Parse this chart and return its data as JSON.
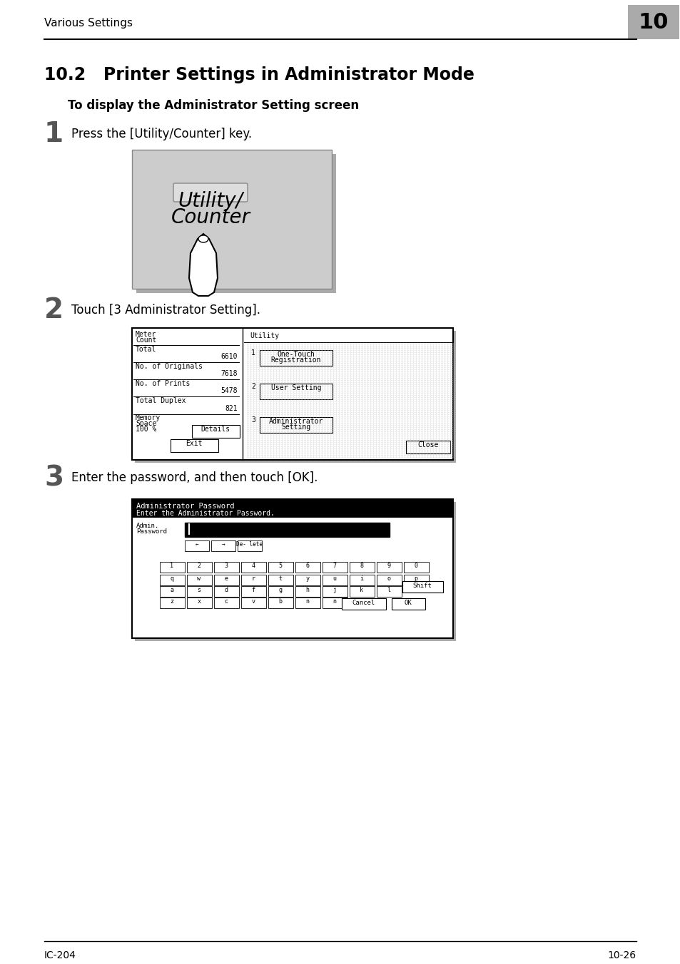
{
  "page_bg": "#ffffff",
  "header_text": "Various Settings",
  "header_num": "10",
  "title": "10.2   Printer Settings in Administrator Mode",
  "subtitle": "To display the Administrator Setting screen",
  "step1_num": "1",
  "step1_text": "Press the [Utility/Counter] key.",
  "step2_num": "2",
  "step2_text": "Touch [3 Administrator Setting].",
  "step3_num": "3",
  "step3_text": "Enter the password, and then touch [OK].",
  "footer_left": "IC-204",
  "footer_right": "10-26"
}
